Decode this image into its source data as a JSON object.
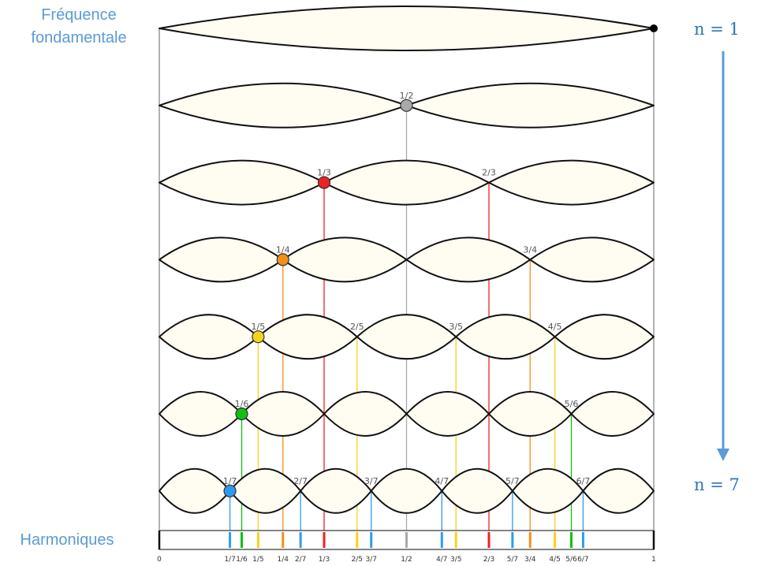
{
  "labels": {
    "fundamental_line1": "Fréquence",
    "fundamental_line2": "fondamentale",
    "harmonics": "Harmoniques",
    "n_first": "n = 1",
    "n_last": "n = 7",
    "scale_start": "0",
    "scale_end": "1"
  },
  "harmonic_count": 7,
  "colors": {
    "string_fill": "#fffdf2",
    "string_stroke": "#111111",
    "arrow": "#5b9bd5",
    "fundamental_dot": "#000000",
    "n2": "#aaaaaa",
    "n3": "#ee2222",
    "n4": "#f39018",
    "n5": "#f7d21c",
    "n6": "#10c010",
    "n7": "#2d9cf0"
  },
  "nodes": [
    {
      "label": "1/2",
      "num": 1,
      "den": 2,
      "n": 2,
      "dot": true
    },
    {
      "label": "1/3",
      "num": 1,
      "den": 3,
      "n": 3,
      "dot": true
    },
    {
      "label": "2/3",
      "num": 2,
      "den": 3,
      "n": 3,
      "dot": false
    },
    {
      "label": "1/4",
      "num": 1,
      "den": 4,
      "n": 4,
      "dot": true
    },
    {
      "label": "3/4",
      "num": 3,
      "den": 4,
      "n": 4,
      "dot": false
    },
    {
      "label": "1/5",
      "num": 1,
      "den": 5,
      "n": 5,
      "dot": true
    },
    {
      "label": "2/5",
      "num": 2,
      "den": 5,
      "n": 5,
      "dot": false
    },
    {
      "label": "3/5",
      "num": 3,
      "den": 5,
      "n": 5,
      "dot": false
    },
    {
      "label": "4/5",
      "num": 4,
      "den": 5,
      "n": 5,
      "dot": false
    },
    {
      "label": "1/6",
      "num": 1,
      "den": 6,
      "n": 6,
      "dot": true
    },
    {
      "label": "5/6",
      "num": 5,
      "den": 6,
      "n": 6,
      "dot": false
    },
    {
      "label": "1/7",
      "num": 1,
      "den": 7,
      "n": 7,
      "dot": true
    },
    {
      "label": "2/7",
      "num": 2,
      "den": 7,
      "n": 7,
      "dot": false
    },
    {
      "label": "3/7",
      "num": 3,
      "den": 7,
      "n": 7,
      "dot": false
    },
    {
      "label": "4/7",
      "num": 4,
      "den": 7,
      "n": 7,
      "dot": false
    },
    {
      "label": "5/7",
      "num": 5,
      "den": 7,
      "n": 7,
      "dot": false
    },
    {
      "label": "6/7",
      "num": 6,
      "den": 7,
      "n": 7,
      "dot": false
    }
  ]
}
